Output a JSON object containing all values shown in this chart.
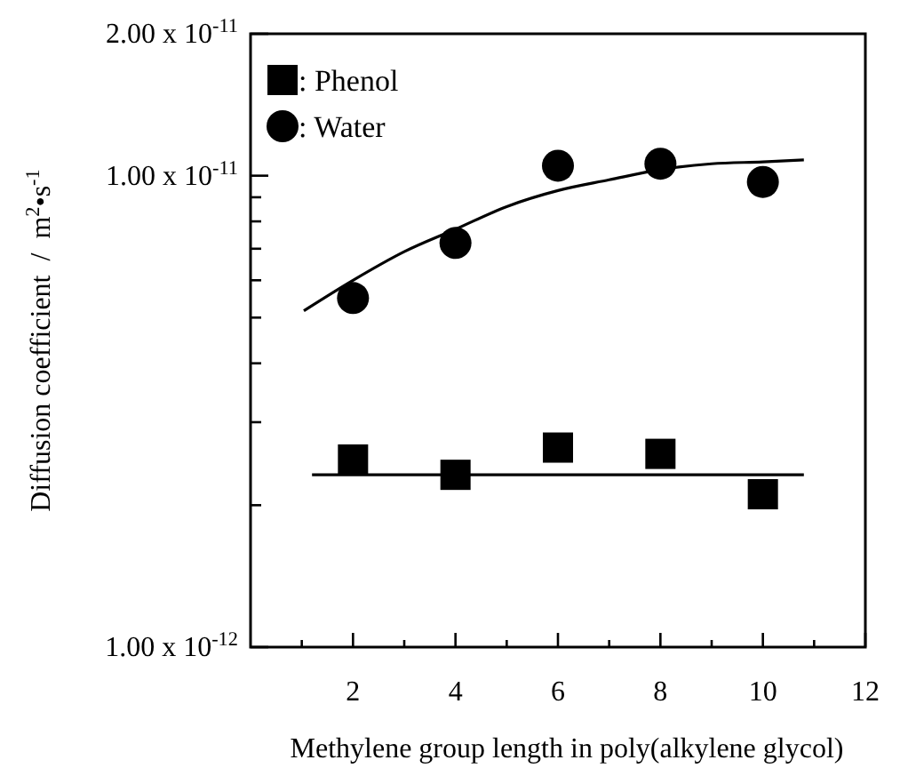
{
  "chart_data": {
    "type": "scatter",
    "xlabel": "Methylene group length in poly(alkylene glycol)",
    "ylabel": "Diffusion coefficient  /  m$^{2}$•s$^{-1}$",
    "log": "y",
    "xlim": [
      0,
      12
    ],
    "ylim": [
      1e-12,
      2e-11
    ],
    "xticks": [
      {
        "value": 1,
        "label": null
      },
      2,
      {
        "value": 3,
        "label": null
      },
      4,
      {
        "value": 5,
        "label": null
      },
      6,
      {
        "value": 7,
        "label": null
      },
      8,
      {
        "value": 9,
        "label": null
      },
      10,
      {
        "value": 11,
        "label": null
      },
      12
    ],
    "yticks": [
      {
        "value": 1e-12,
        "label": "1.00 x 10$^{-12}$"
      },
      {
        "value": 2e-12,
        "label": null
      },
      {
        "value": 3e-12,
        "label": null
      },
      {
        "value": 4e-12,
        "label": null
      },
      {
        "value": 5e-12,
        "label": null
      },
      {
        "value": 6e-12,
        "label": null
      },
      {
        "value": 7e-12,
        "label": null
      },
      {
        "value": 8e-12,
        "label": null
      },
      {
        "value": 9e-12,
        "label": null
      },
      {
        "value": 1e-11,
        "label": "1.00 x 10$^{-11}$"
      },
      {
        "value": 2e-11,
        "label": "2.00 x 10$^{-11}$"
      }
    ],
    "legend": "top left",
    "grid": false,
    "series": [
      {
        "name": ": Phenol",
        "marker": "square",
        "color": "#000000",
        "x": [
          2,
          4,
          6,
          8,
          10
        ],
        "values": [
          2.5e-12,
          2.32e-12,
          2.65e-12,
          2.57e-12,
          2.11e-12
        ]
      },
      {
        "name": ": Water",
        "marker": "circle",
        "color": "#000000",
        "x": [
          2,
          4,
          6,
          8,
          10
        ],
        "values": [
          5.5e-12,
          7.2e-12,
          1.05e-11,
          1.06e-11,
          9.7e-12
        ]
      },
      {
        "type": "line",
        "marker": "none",
        "line_style": "solid",
        "color": "#000000",
        "x": [
          1.2,
          10.8
        ],
        "values": [
          2.32e-12,
          2.32e-12
        ]
      },
      {
        "type": "line",
        "marker": "none",
        "line_style": "solid",
        "color": "#000000",
        "x": [
          1.04,
          2,
          3,
          4,
          5,
          6,
          7,
          8,
          9,
          10,
          10.8
        ],
        "values": [
          5.17e-12,
          6e-12,
          6.9e-12,
          7.7e-12,
          8.6e-12,
          9.3e-12,
          9.8e-12,
          1.03e-11,
          1.06e-11,
          1.07e-11,
          1.08e-11
        ]
      }
    ]
  }
}
